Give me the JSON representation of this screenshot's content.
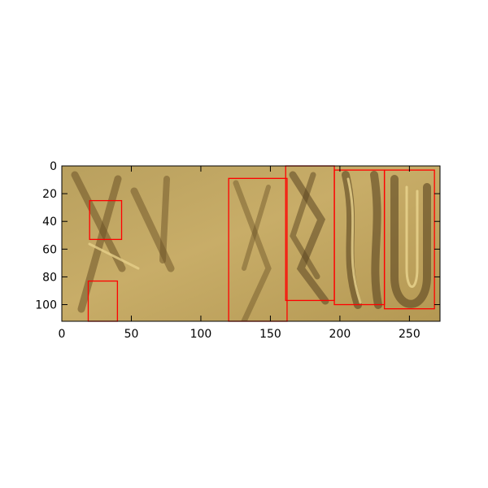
{
  "chart_data": {
    "type": "image-with-bounding-boxes",
    "title": "",
    "xlabel": "",
    "ylabel": "",
    "xlim": [
      0,
      272
    ],
    "ylim": [
      112,
      0
    ],
    "xticks": [
      0,
      50,
      100,
      150,
      200,
      250
    ],
    "yticks": [
      0,
      20,
      40,
      60,
      80,
      100
    ],
    "grid": false,
    "image_description": "close-up photograph of carved glyph-like inscription on golden stone",
    "box_color": "#ff0000",
    "boxes": [
      {
        "x0": 20,
        "y0": 25,
        "x1": 43,
        "y1": 53
      },
      {
        "x0": 19,
        "y0": 83,
        "x1": 40,
        "y1": 112
      },
      {
        "x0": 120,
        "y0": 9,
        "x1": 162,
        "y1": 112
      },
      {
        "x0": 161,
        "y0": 0,
        "x1": 196,
        "y1": 97
      },
      {
        "x0": 196,
        "y0": 3,
        "x1": 232,
        "y1": 100
      },
      {
        "x0": 232,
        "y0": 3,
        "x1": 268,
        "y1": 103
      }
    ]
  }
}
